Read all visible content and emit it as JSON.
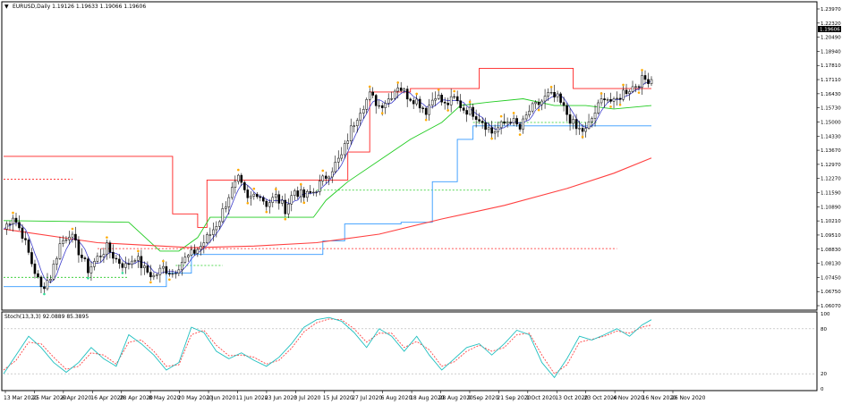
{
  "header": {
    "symbol_line": "EURUSD,Daily 1.19126 1.19633 1.19066 1.19606",
    "menu_glyph": "▼"
  },
  "price_panel": {
    "current_price_tag": "1.19606",
    "y_labels": [
      "1.23970",
      "1.22320",
      "1.20490",
      "1.18940",
      "1.17810",
      "1.17110",
      "1.16430",
      "1.15730",
      "1.15000",
      "1.14330",
      "1.13670",
      "1.12970",
      "1.12270",
      "1.11590",
      "1.10890",
      "1.10210",
      "1.09510",
      "1.08830",
      "1.08130",
      "1.07450",
      "1.06750",
      "1.06070"
    ]
  },
  "oscillator_panel": {
    "title": "Stoch(13,3,3) 92.0889 85.3895",
    "y_labels": [
      "100",
      "80",
      "20",
      "0"
    ]
  },
  "x_axis": {
    "labels": [
      "13 Mar 2020",
      "25 Mar 2020",
      "6 Apr 2020",
      "16 Apr 2020",
      "28 Apr 2020",
      "8 May 2020",
      "20 May 2020",
      "1 Jun 2020",
      "11 Jun 2020",
      "23 Jun 2020",
      "3 Jul 2020",
      "15 Jul 2020",
      "27 Jul 2020",
      "6 Aug 2020",
      "18 Aug 2020",
      "28 Aug 2020",
      "9 Sep 2020",
      "21 Sep 2020",
      "1 Oct 2020",
      "13 Oct 2020",
      "23 Oct 2020",
      "4 Nov 2020",
      "16 Nov 2020",
      "26 Nov 2020"
    ]
  },
  "colors": {
    "upper_channel": "#ff2020",
    "lower_channel": "#3399ff",
    "mid_channel": "#22cc22",
    "ma_long": "#ff4040",
    "ma_fast": "#4040cc",
    "stoch_main": "#20c0c0",
    "stoch_signal": "#ff3030",
    "fractal_up": "#ffaa00",
    "fractal_down": "#33dd99"
  },
  "chart_data": {
    "type": "candlestick",
    "ylim": [
      1.0607,
      1.2397
    ],
    "close_path": [
      [
        0,
        1.107
      ],
      [
        3,
        1.115
      ],
      [
        6,
        1.104
      ],
      [
        9,
        1.087
      ],
      [
        12,
        1.072
      ],
      [
        15,
        1.079
      ],
      [
        18,
        1.098
      ],
      [
        21,
        1.105
      ],
      [
        24,
        1.094
      ],
      [
        27,
        1.083
      ],
      [
        30,
        1.09
      ],
      [
        33,
        1.096
      ],
      [
        36,
        1.089
      ],
      [
        39,
        1.085
      ],
      [
        42,
        1.091
      ],
      [
        45,
        1.083
      ],
      [
        48,
        1.079
      ],
      [
        51,
        1.084
      ],
      [
        54,
        1.081
      ],
      [
        57,
        1.088
      ],
      [
        60,
        1.092
      ],
      [
        63,
        1.097
      ],
      [
        66,
        1.104
      ],
      [
        69,
        1.113
      ],
      [
        72,
        1.127
      ],
      [
        75,
        1.136
      ],
      [
        78,
        1.124
      ],
      [
        81,
        1.129
      ],
      [
        84,
        1.122
      ],
      [
        87,
        1.126
      ],
      [
        90,
        1.119
      ],
      [
        93,
        1.13
      ],
      [
        96,
        1.126
      ],
      [
        99,
        1.129
      ],
      [
        102,
        1.136
      ],
      [
        105,
        1.143
      ],
      [
        108,
        1.15
      ],
      [
        111,
        1.166
      ],
      [
        114,
        1.178
      ],
      [
        117,
        1.186
      ],
      [
        120,
        1.18
      ],
      [
        123,
        1.184
      ],
      [
        126,
        1.192
      ],
      [
        129,
        1.186
      ],
      [
        132,
        1.183
      ],
      [
        135,
        1.177
      ],
      [
        138,
        1.187
      ],
      [
        141,
        1.18
      ],
      [
        144,
        1.184
      ],
      [
        147,
        1.178
      ],
      [
        150,
        1.176
      ],
      [
        153,
        1.171
      ],
      [
        156,
        1.164
      ],
      [
        159,
        1.168
      ],
      [
        162,
        1.172
      ],
      [
        165,
        1.166
      ],
      [
        168,
        1.177
      ],
      [
        171,
        1.181
      ],
      [
        174,
        1.186
      ],
      [
        177,
        1.184
      ],
      [
        180,
        1.175
      ],
      [
        183,
        1.166
      ],
      [
        186,
        1.165
      ],
      [
        189,
        1.176
      ],
      [
        192,
        1.186
      ],
      [
        195,
        1.181
      ],
      [
        198,
        1.188
      ],
      [
        201,
        1.191
      ],
      [
        204,
        1.195
      ],
      [
        207,
        1.196
      ]
    ],
    "upper_channel": [
      [
        0,
        1.15
      ],
      [
        40,
        1.15
      ],
      [
        47,
        1.15
      ],
      [
        54,
        1.116
      ],
      [
        62,
        1.108
      ],
      [
        65,
        1.136
      ],
      [
        78,
        1.136
      ],
      [
        100,
        1.136
      ],
      [
        110,
        1.1525
      ],
      [
        117,
        1.188
      ],
      [
        130,
        1.19
      ],
      [
        152,
        1.19
      ],
      [
        152,
        1.202
      ],
      [
        180,
        1.202
      ],
      [
        182,
        1.19
      ],
      [
        207,
        1.19
      ]
    ],
    "lower_channel": [
      [
        0,
        1.073
      ],
      [
        50,
        1.073
      ],
      [
        52,
        1.081
      ],
      [
        58,
        1.081
      ],
      [
        60,
        1.092
      ],
      [
        70,
        1.092
      ],
      [
        80,
        1.092
      ],
      [
        99,
        1.092
      ],
      [
        102,
        1.1
      ],
      [
        109,
        1.11
      ],
      [
        127,
        1.111
      ],
      [
        137,
        1.135
      ],
      [
        145,
        1.16
      ],
      [
        150,
        1.168
      ],
      [
        175,
        1.168
      ],
      [
        207,
        1.168
      ]
    ],
    "mid_channel": [
      [
        0,
        1.112
      ],
      [
        40,
        1.111
      ],
      [
        50,
        1.094
      ],
      [
        56,
        1.094
      ],
      [
        62,
        1.102
      ],
      [
        66,
        1.114
      ],
      [
        78,
        1.114
      ],
      [
        99,
        1.114
      ],
      [
        103,
        1.124
      ],
      [
        110,
        1.135
      ],
      [
        122,
        1.15
      ],
      [
        130,
        1.16
      ],
      [
        140,
        1.17
      ],
      [
        146,
        1.18
      ],
      [
        155,
        1.182
      ],
      [
        166,
        1.184
      ],
      [
        176,
        1.18
      ],
      [
        186,
        1.18
      ],
      [
        195,
        1.178
      ],
      [
        207,
        1.18
      ]
    ],
    "ma_long": [
      [
        0,
        1.107
      ],
      [
        30,
        1.099
      ],
      [
        60,
        1.096
      ],
      [
        80,
        1.097
      ],
      [
        100,
        1.099
      ],
      [
        120,
        1.104
      ],
      [
        140,
        1.113
      ],
      [
        160,
        1.121
      ],
      [
        180,
        1.131
      ],
      [
        195,
        1.14
      ],
      [
        207,
        1.149
      ]
    ],
    "dotted_levels": [
      {
        "y": 1.1365,
        "x0": 0,
        "x1": 22,
        "color": "#ff2020"
      },
      {
        "y": 1.0955,
        "x0": 30,
        "x1": 196,
        "color": "#ff2020"
      },
      {
        "y": 1.0855,
        "x0": 55,
        "x1": 70,
        "color": "#22cc22"
      },
      {
        "y": 1.0785,
        "x0": 0,
        "x1": 40,
        "color": "#22cc22"
      },
      {
        "y": 1.13,
        "x0": 100,
        "x1": 156,
        "color": "#22cc22"
      },
      {
        "y": 1.17,
        "x0": 150,
        "x1": 190,
        "color": "#22cc22"
      }
    ],
    "stochastic": {
      "ylim": [
        0,
        100
      ],
      "main": [
        [
          0,
          20
        ],
        [
          4,
          45
        ],
        [
          8,
          70
        ],
        [
          12,
          55
        ],
        [
          16,
          35
        ],
        [
          20,
          22
        ],
        [
          24,
          35
        ],
        [
          28,
          55
        ],
        [
          32,
          40
        ],
        [
          36,
          30
        ],
        [
          40,
          72
        ],
        [
          44,
          60
        ],
        [
          48,
          45
        ],
        [
          52,
          25
        ],
        [
          56,
          35
        ],
        [
          60,
          82
        ],
        [
          64,
          75
        ],
        [
          68,
          50
        ],
        [
          72,
          40
        ],
        [
          76,
          48
        ],
        [
          80,
          38
        ],
        [
          84,
          30
        ],
        [
          88,
          42
        ],
        [
          92,
          60
        ],
        [
          96,
          82
        ],
        [
          100,
          92
        ],
        [
          104,
          95
        ],
        [
          108,
          90
        ],
        [
          112,
          75
        ],
        [
          116,
          55
        ],
        [
          120,
          80
        ],
        [
          124,
          70
        ],
        [
          128,
          50
        ],
        [
          132,
          70
        ],
        [
          136,
          45
        ],
        [
          140,
          25
        ],
        [
          144,
          40
        ],
        [
          148,
          55
        ],
        [
          152,
          60
        ],
        [
          156,
          45
        ],
        [
          160,
          60
        ],
        [
          164,
          78
        ],
        [
          168,
          72
        ],
        [
          172,
          35
        ],
        [
          176,
          15
        ],
        [
          180,
          40
        ],
        [
          184,
          70
        ],
        [
          188,
          65
        ],
        [
          192,
          72
        ],
        [
          196,
          80
        ],
        [
          200,
          70
        ],
        [
          204,
          85
        ],
        [
          207,
          92
        ]
      ],
      "signal": [
        [
          0,
          25
        ],
        [
          4,
          38
        ],
        [
          8,
          62
        ],
        [
          12,
          60
        ],
        [
          16,
          42
        ],
        [
          20,
          26
        ],
        [
          24,
          30
        ],
        [
          28,
          48
        ],
        [
          32,
          45
        ],
        [
          36,
          33
        ],
        [
          40,
          62
        ],
        [
          44,
          65
        ],
        [
          48,
          50
        ],
        [
          52,
          30
        ],
        [
          56,
          32
        ],
        [
          60,
          72
        ],
        [
          64,
          78
        ],
        [
          68,
          58
        ],
        [
          72,
          44
        ],
        [
          76,
          45
        ],
        [
          80,
          42
        ],
        [
          84,
          33
        ],
        [
          88,
          38
        ],
        [
          92,
          54
        ],
        [
          96,
          76
        ],
        [
          100,
          88
        ],
        [
          104,
          93
        ],
        [
          108,
          92
        ],
        [
          112,
          80
        ],
        [
          116,
          62
        ],
        [
          120,
          74
        ],
        [
          124,
          74
        ],
        [
          128,
          55
        ],
        [
          132,
          63
        ],
        [
          136,
          52
        ],
        [
          140,
          30
        ],
        [
          144,
          36
        ],
        [
          148,
          50
        ],
        [
          152,
          58
        ],
        [
          156,
          50
        ],
        [
          160,
          55
        ],
        [
          164,
          72
        ],
        [
          168,
          74
        ],
        [
          172,
          45
        ],
        [
          176,
          20
        ],
        [
          180,
          32
        ],
        [
          184,
          62
        ],
        [
          188,
          66
        ],
        [
          192,
          70
        ],
        [
          196,
          77
        ],
        [
          200,
          74
        ],
        [
          204,
          82
        ],
        [
          207,
          85
        ]
      ],
      "levels": [
        80,
        20
      ]
    }
  }
}
